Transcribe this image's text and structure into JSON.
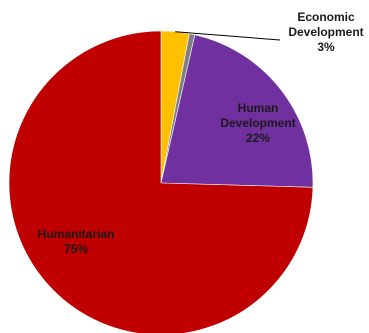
{
  "chart_data": {
    "type": "pie",
    "title": "",
    "start_angle_deg": 0,
    "direction": "clockwise",
    "legend": "none",
    "slices": [
      {
        "label_lines": [
          "Economic",
          "Development"
        ],
        "value": 3,
        "display_value": "3%",
        "color": "#ffc000"
      },
      {
        "label_lines": [],
        "value": 0.6,
        "display_value": "",
        "color": "#7f7f7f"
      },
      {
        "label_lines": [
          "Human",
          "Development"
        ],
        "value": 22,
        "display_value": "22%",
        "color": "#7030a0"
      },
      {
        "label_lines": [
          "Humanitarian"
        ],
        "value": 75,
        "display_value": "75%",
        "color": "#c00000"
      }
    ]
  }
}
